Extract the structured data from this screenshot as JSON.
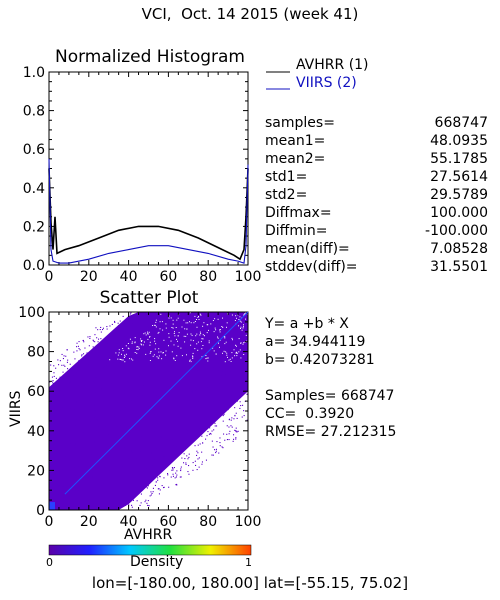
{
  "header": {
    "title": "VCI,  Oct. 14 2015 (week 41)"
  },
  "histogram": {
    "legend": [
      {
        "name": "AVHRR (1)",
        "color": "#000000"
      },
      {
        "name": "VIIRS (2)",
        "color": "#1010c0"
      }
    ],
    "stats": [
      {
        "label": "samples=",
        "value": "668747"
      },
      {
        "label": "mean1=",
        "value": "48.0935"
      },
      {
        "label": "mean2=",
        "value": "55.1785"
      },
      {
        "label": "std1=",
        "value": "27.5614"
      },
      {
        "label": "std2=",
        "value": "29.5789"
      },
      {
        "label": "Diffmax=",
        "value": "100.000"
      },
      {
        "label": "Diffmin=",
        "value": "-100.000"
      },
      {
        "label": "mean(diff)=",
        "value": "7.08528"
      },
      {
        "label": "stddev(diff)=",
        "value": "31.5501"
      }
    ]
  },
  "scatter": {
    "regression": {
      "equation": "Y= a +b * X",
      "a": "a= 34.944119",
      "b": "b= 0.42073281",
      "samples": "Samples= 668747",
      "cc": "CC=  0.3920",
      "rmse": "RMSE= 27.212315"
    },
    "colorbar": {
      "label": "Density",
      "min": "0",
      "max": "1"
    }
  },
  "footer": {
    "range": "lon=[-180.00, 180.00] lat=[-55.15, 75.02]"
  },
  "chart_data": [
    {
      "type": "line",
      "title": "Normalized Histogram",
      "xlabel": "",
      "ylabel": "",
      "xlim": [
        0,
        100
      ],
      "ylim": [
        0,
        1.0
      ],
      "x_ticks": [
        "0",
        "20",
        "40",
        "60",
        "80",
        "100"
      ],
      "y_ticks": [
        "0.0",
        "0.2",
        "0.4",
        "0.6",
        "0.8",
        "1.0"
      ],
      "series": [
        {
          "name": "AVHRR (1)",
          "color": "#000000",
          "points": [
            [
              0,
              0.5
            ],
            [
              1,
              0.22
            ],
            [
              2,
              0.08
            ],
            [
              3,
              0.25
            ],
            [
              4,
              0.06
            ],
            [
              8,
              0.08
            ],
            [
              15,
              0.1
            ],
            [
              25,
              0.14
            ],
            [
              35,
              0.18
            ],
            [
              45,
              0.2
            ],
            [
              55,
              0.2
            ],
            [
              65,
              0.18
            ],
            [
              75,
              0.14
            ],
            [
              85,
              0.09
            ],
            [
              93,
              0.05
            ],
            [
              96,
              0.03
            ],
            [
              98,
              0.08
            ],
            [
              99,
              0.25
            ],
            [
              100,
              0.5
            ]
          ]
        },
        {
          "name": "VIIRS (2)",
          "color": "#1010c0",
          "points": [
            [
              0,
              0.55
            ],
            [
              1,
              0.08
            ],
            [
              2,
              0.02
            ],
            [
              5,
              0.01
            ],
            [
              10,
              0.01
            ],
            [
              20,
              0.03
            ],
            [
              30,
              0.06
            ],
            [
              40,
              0.08
            ],
            [
              50,
              0.1
            ],
            [
              60,
              0.1
            ],
            [
              70,
              0.08
            ],
            [
              80,
              0.06
            ],
            [
              90,
              0.03
            ],
            [
              95,
              0.02
            ],
            [
              98,
              0.01
            ],
            [
              99,
              0.1
            ],
            [
              100,
              0.52
            ]
          ]
        }
      ]
    },
    {
      "type": "scatter",
      "title": "Scatter Plot",
      "xlabel": "AVHRR",
      "ylabel": "VIIRS",
      "xlim": [
        0,
        100
      ],
      "ylim": [
        0,
        100
      ],
      "x_ticks": [
        "0",
        "20",
        "40",
        "60",
        "80",
        "100"
      ],
      "y_ticks": [
        "0",
        "20",
        "40",
        "60",
        "80",
        "100"
      ],
      "regression": {
        "a": 34.944119,
        "b": 0.42073281
      },
      "samples": 668747,
      "cc": 0.392,
      "rmse": 27.212315
    }
  ]
}
